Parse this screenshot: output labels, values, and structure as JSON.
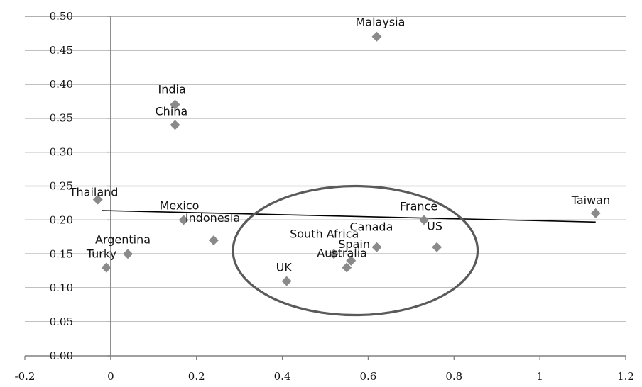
{
  "chart_data": {
    "type": "scatter",
    "title": "",
    "xlabel": "",
    "ylabel": "",
    "xlim": [
      -0.2,
      1.2
    ],
    "ylim": [
      0.0,
      0.5
    ],
    "grid": "horizontal",
    "x_ticks": [
      "-0.2",
      "0",
      "0.2",
      "0.4",
      "0.6",
      "0.8",
      "1",
      "1.2"
    ],
    "y_ticks": [
      "0.00",
      "0.05",
      "0.10",
      "0.15",
      "0.20",
      "0.25",
      "0.30",
      "0.35",
      "0.40",
      "0.45",
      "0.50"
    ],
    "marker_color": "#8a8a8a",
    "points": [
      {
        "label": "Malaysia",
        "x": 0.62,
        "y": 0.47
      },
      {
        "label": "India",
        "x": 0.15,
        "y": 0.37
      },
      {
        "label": "China",
        "x": 0.15,
        "y": 0.34
      },
      {
        "label": "Thailand",
        "x": -0.03,
        "y": 0.23
      },
      {
        "label": "Mexico",
        "x": 0.17,
        "y": 0.2
      },
      {
        "label": "Indonesia",
        "x": 0.24,
        "y": 0.17
      },
      {
        "label": "Argentina",
        "x": 0.04,
        "y": 0.15
      },
      {
        "label": "Turky",
        "x": -0.01,
        "y": 0.13
      },
      {
        "label": "Taiwan",
        "x": 1.13,
        "y": 0.21
      },
      {
        "label": "France",
        "x": 0.73,
        "y": 0.2
      },
      {
        "label": "US",
        "x": 0.76,
        "y": 0.16
      },
      {
        "label": "Canada",
        "x": 0.62,
        "y": 0.16
      },
      {
        "label": "South Africa",
        "x": 0.52,
        "y": 0.15
      },
      {
        "label": "Spain",
        "x": 0.56,
        "y": 0.14
      },
      {
        "label": "Australia",
        "x": 0.55,
        "y": 0.13
      },
      {
        "label": "UK",
        "x": 0.41,
        "y": 0.11
      }
    ],
    "trendline": {
      "x": [
        -0.02,
        1.13
      ],
      "y": [
        0.214,
        0.197
      ],
      "color": "#000000"
    },
    "ellipse": {
      "center": [
        0.57,
        0.155
      ],
      "rx": 0.285,
      "ry": 0.095,
      "color": "#5a5a5a"
    }
  }
}
